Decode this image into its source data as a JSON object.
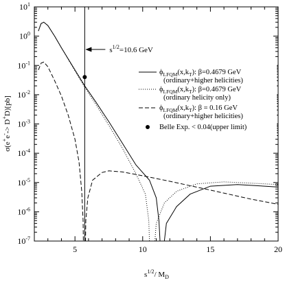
{
  "chart_data": {
    "type": "line",
    "xlabel": {
      "main": "s",
      "sup": "1/2",
      "tail": "/ M",
      "sub": "D"
    },
    "ylabel": {
      "main": "σ(e",
      "sup1": "+",
      "mid": "e",
      "sup2": "-",
      "mid2": "-> D",
      "sup3": "+",
      "tail": "D)[pb]"
    },
    "xlim": [
      2,
      20
    ],
    "ylim": [
      1e-07,
      10
    ],
    "yscale": "log",
    "x_ticks": [
      {
        "value": 5,
        "label": "5"
      },
      {
        "value": 10,
        "label": "10"
      },
      {
        "value": 15,
        "label": "15"
      },
      {
        "value": 20,
        "label": "20"
      }
    ],
    "y_ticks": [
      {
        "value": 1e-07,
        "base": "10",
        "exp": "-7"
      },
      {
        "value": 1e-06,
        "base": "10",
        "exp": "-6"
      },
      {
        "value": 1e-05,
        "base": "10",
        "exp": "-5"
      },
      {
        "value": 0.0001,
        "base": "10",
        "exp": "-4"
      },
      {
        "value": 0.001,
        "base": "10",
        "exp": "-3"
      },
      {
        "value": 0.01,
        "base": "10",
        "exp": "-2"
      },
      {
        "value": 0.1,
        "base": "10",
        "exp": "-1"
      },
      {
        "value": 1,
        "base": "10",
        "exp": "0"
      },
      {
        "value": 10,
        "base": "10",
        "exp": "1"
      }
    ],
    "annotation": {
      "x": 5.72,
      "arrow_y": 0.35,
      "text_main": "s",
      "text_sup": "1/2",
      "text_tail": "=10.6 GeV"
    },
    "series": [
      {
        "style": "solid",
        "legend": {
          "main": "ϕ",
          "sub1": "LFQM",
          "mid": "(x,k",
          "sub2": "T",
          "tail": "): β=0.4679 GeV",
          "line2": "(ordinary+higher helicities)"
        },
        "points": [
          [
            2.3,
            1.5
          ],
          [
            2.5,
            2.7
          ],
          [
            2.7,
            3.0
          ],
          [
            3.0,
            2.3
          ],
          [
            3.5,
            1.0
          ],
          [
            4.0,
            0.4
          ],
          [
            5.0,
            0.07
          ],
          [
            5.72,
            0.02
          ],
          [
            6.5,
            0.006
          ],
          [
            7.5,
            0.0012
          ],
          [
            8.5,
            0.00022
          ],
          [
            9.5,
            4e-05
          ],
          [
            10.5,
            1.2e-05
          ],
          [
            11.0,
            3e-06
          ],
          [
            11.2,
            5e-07
          ],
          [
            11.28,
            1e-07
          ],
          [
            11.6,
            1e-07
          ],
          [
            11.75,
            4e-07
          ],
          [
            12.5,
            1.5e-06
          ],
          [
            13.5,
            4e-06
          ],
          [
            15.0,
            7.5e-06
          ],
          [
            17.0,
            8.5e-06
          ],
          [
            19.0,
            7.5e-06
          ],
          [
            20.0,
            7e-06
          ]
        ]
      },
      {
        "style": "dotted",
        "legend": {
          "main": "ϕ",
          "sub1": "LFQM",
          "mid": "(x,k",
          "sub2": "T",
          "tail": "): β=0.4679 GeV",
          "line2": "(ordinary helicity only)"
        },
        "points": [
          [
            2.3,
            1.5
          ],
          [
            2.5,
            2.7
          ],
          [
            2.7,
            3.0
          ],
          [
            3.0,
            2.3
          ],
          [
            3.5,
            1.0
          ],
          [
            4.0,
            0.4
          ],
          [
            5.0,
            0.065
          ],
          [
            5.72,
            0.018
          ],
          [
            6.5,
            0.005
          ],
          [
            7.5,
            0.0009
          ],
          [
            8.5,
            0.00015
          ],
          [
            9.5,
            2e-05
          ],
          [
            10.2,
            4e-06
          ],
          [
            10.45,
            5e-07
          ],
          [
            10.5,
            1e-07
          ],
          [
            10.9,
            1e-07
          ],
          [
            11.0,
            4e-07
          ],
          [
            11.6,
            2e-06
          ],
          [
            12.5,
            5e-06
          ],
          [
            14.0,
            9e-06
          ],
          [
            16.0,
            1.05e-05
          ],
          [
            18.0,
            9.5e-06
          ],
          [
            20.0,
            8.5e-06
          ]
        ]
      },
      {
        "style": "dashed",
        "legend": {
          "main": "ϕ",
          "sub1": "LFQM",
          "mid": "(x,k",
          "sub2": "T",
          "tail": "): β = 0.16 GeV",
          "line2": "(ordinary+higher helicities)"
        },
        "points": [
          [
            2.3,
            0.07
          ],
          [
            2.5,
            0.12
          ],
          [
            2.7,
            0.13
          ],
          [
            3.0,
            0.09
          ],
          [
            3.5,
            0.03
          ],
          [
            4.0,
            0.009
          ],
          [
            4.5,
            0.002
          ],
          [
            5.0,
            0.0003
          ],
          [
            5.3,
            5e-05
          ],
          [
            5.5,
            5e-06
          ],
          [
            5.6,
            5e-07
          ],
          [
            5.62,
            1e-07
          ],
          [
            5.78,
            1e-07
          ],
          [
            5.8,
            5e-07
          ],
          [
            5.95,
            3e-06
          ],
          [
            6.3,
            1.2e-05
          ],
          [
            7.0,
            2.2e-05
          ],
          [
            7.5,
            2.5e-05
          ],
          [
            8.5,
            2.3e-05
          ],
          [
            10.0,
            1.7e-05
          ],
          [
            12.0,
            1.1e-05
          ],
          [
            15.0,
            5.5e-06
          ],
          [
            18.0,
            2.7e-06
          ],
          [
            20.0,
            1.8e-06
          ]
        ]
      }
    ],
    "data_point": {
      "x": 5.72,
      "y": 0.04,
      "legend": "Belle Exp. < 0.04(upper limit)"
    }
  }
}
